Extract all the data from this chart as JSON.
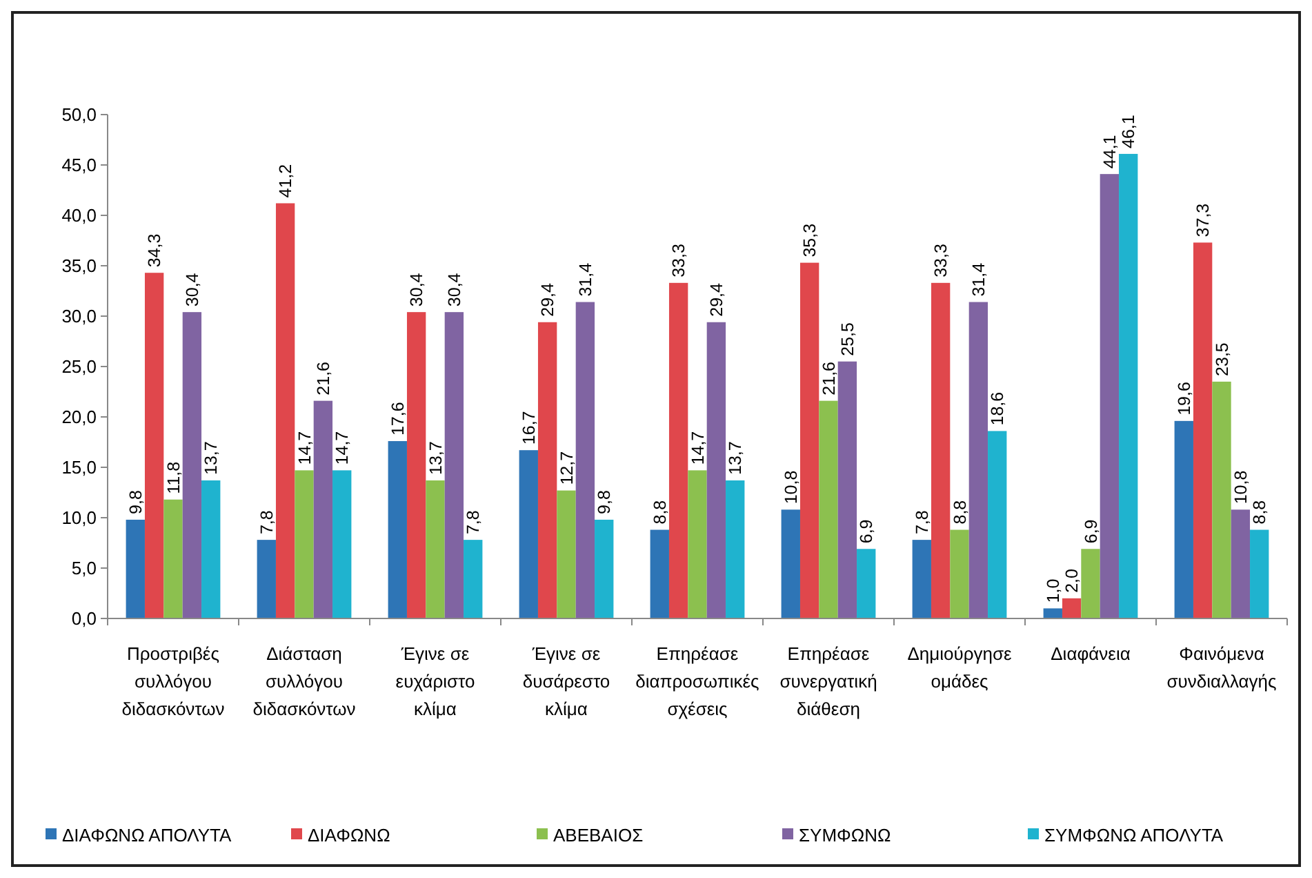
{
  "chart_data": {
    "type": "bar",
    "categories": [
      "Προστριβές συλλόγου διδασκόντων",
      "Διάσταση συλλόγου διδασκόντων",
      "Έγινε σε ευχάριστο κλίμα",
      "Έγινε σε δυσάρεστο κλίμα",
      "Επηρέασε διαπροσωπικές σχέσεις",
      "Επηρέασε συνεργατική διάθεση",
      "Δημιούργησε ομάδες",
      "Διαφάνεια",
      "Φαινόμενα συνδιαλλαγής"
    ],
    "series": [
      {
        "name": "ΔΙΑΦΩΝΩ ΑΠΟΛΥΤΑ",
        "color": "#2e75b6",
        "values": [
          9.8,
          7.8,
          17.6,
          16.7,
          8.8,
          10.8,
          7.8,
          1.0,
          19.6
        ],
        "value_labels": [
          "9,8",
          "7,8",
          "17,6",
          "16,7",
          "8,8",
          "10,8",
          "7,8",
          "1,0",
          "19,6"
        ]
      },
      {
        "name": "ΔΙΑΦΩΝΩ",
        "color": "#e0474c",
        "values": [
          34.3,
          41.2,
          30.4,
          29.4,
          33.3,
          35.3,
          33.3,
          2.0,
          37.3
        ],
        "value_labels": [
          "34,3",
          "41,2",
          "30,4",
          "29,4",
          "33,3",
          "35,3",
          "33,3",
          "2,0",
          "37,3"
        ]
      },
      {
        "name": "ΑΒΕΒΑΙΟΣ",
        "color": "#8cc04f",
        "values": [
          11.8,
          14.7,
          13.7,
          12.7,
          14.7,
          21.6,
          8.8,
          6.9,
          23.5
        ],
        "value_labels": [
          "11,8",
          "14,7",
          "13,7",
          "12,7",
          "14,7",
          "21,6",
          "8,8",
          "6,9",
          "23,5"
        ]
      },
      {
        "name": "ΣΥΜΦΩΝΩ",
        "color": "#8064a2",
        "values": [
          30.4,
          21.6,
          30.4,
          31.4,
          29.4,
          25.5,
          31.4,
          44.1,
          10.8
        ],
        "value_labels": [
          "30,4",
          "21,6",
          "30,4",
          "31,4",
          "29,4",
          "25,5",
          "31,4",
          "44,1",
          "10,8"
        ]
      },
      {
        "name": "ΣΥΜΦΩΝΩ ΑΠΟΛΥΤΑ",
        "color": "#1fb3cf",
        "values": [
          13.7,
          14.7,
          7.8,
          9.8,
          13.7,
          6.9,
          18.6,
          46.1,
          8.8
        ],
        "value_labels": [
          "13,7",
          "14,7",
          "7,8",
          "9,8",
          "13,7",
          "6,9",
          "18,6",
          "46,1",
          "8,8"
        ]
      }
    ],
    "ylim": [
      0,
      50
    ],
    "yticks": [
      {
        "value": 0,
        "label": "0,0"
      },
      {
        "value": 5,
        "label": "5,0"
      },
      {
        "value": 10,
        "label": "10,0"
      },
      {
        "value": 15,
        "label": "15,0"
      },
      {
        "value": 20,
        "label": "20,0"
      },
      {
        "value": 25,
        "label": "25,0"
      },
      {
        "value": 30,
        "label": "30,0"
      },
      {
        "value": 35,
        "label": "35,0"
      },
      {
        "value": 40,
        "label": "40,0"
      },
      {
        "value": 45,
        "label": "45,0"
      },
      {
        "value": 50,
        "label": "50,0"
      }
    ],
    "grid": false,
    "legend": "bottom"
  }
}
